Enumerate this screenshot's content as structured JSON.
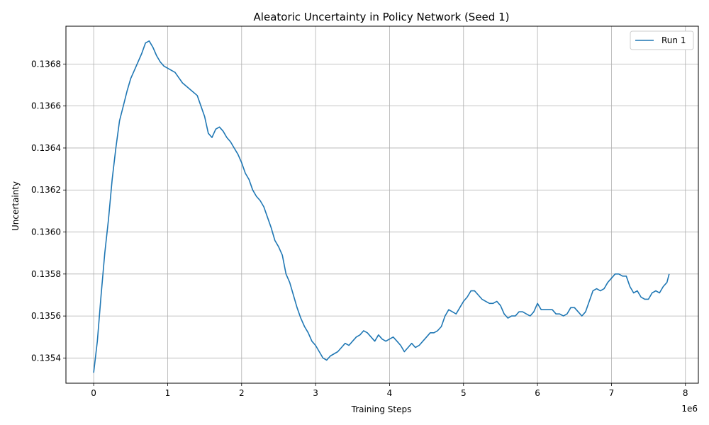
{
  "chart_data": {
    "type": "line",
    "title": "Aleatoric Uncertainty in Policy Network (Seed 1)",
    "xlabel": "Training Steps",
    "ylabel": "Uncertainty",
    "x_offset_label": "1e6",
    "xlim": [
      -375000,
      8175000
    ],
    "ylim": [
      0.13528,
      0.13698
    ],
    "xticks": [
      0,
      1000000,
      2000000,
      3000000,
      4000000,
      5000000,
      6000000,
      7000000,
      8000000
    ],
    "xtick_labels": [
      "0",
      "1",
      "2",
      "3",
      "4",
      "5",
      "6",
      "7",
      "8"
    ],
    "yticks": [
      0.1354,
      0.1356,
      0.1358,
      0.136,
      0.1362,
      0.1364,
      0.1366,
      0.1368
    ],
    "ytick_labels": [
      "0.1354",
      "0.1356",
      "0.1358",
      "0.1360",
      "0.1362",
      "0.1364",
      "0.1366",
      "0.1368"
    ],
    "grid": true,
    "legend_position": "top-right",
    "series": [
      {
        "name": "Run 1",
        "color": "#1f77b4",
        "x": [
          0,
          50000,
          100000,
          150000,
          200000,
          250000,
          300000,
          350000,
          400000,
          450000,
          500000,
          550000,
          600000,
          650000,
          700000,
          750000,
          800000,
          850000,
          900000,
          950000,
          1000000,
          1100000,
          1200000,
          1300000,
          1400000,
          1450000,
          1500000,
          1550000,
          1600000,
          1650000,
          1700000,
          1750000,
          1800000,
          1850000,
          1900000,
          1950000,
          2000000,
          2050000,
          2100000,
          2150000,
          2200000,
          2250000,
          2300000,
          2350000,
          2400000,
          2450000,
          2500000,
          2550000,
          2600000,
          2650000,
          2700000,
          2750000,
          2800000,
          2850000,
          2900000,
          2950000,
          3000000,
          3050000,
          3100000,
          3150000,
          3200000,
          3250000,
          3300000,
          3350000,
          3400000,
          3450000,
          3500000,
          3550000,
          3600000,
          3650000,
          3700000,
          3750000,
          3800000,
          3850000,
          3900000,
          3950000,
          4000000,
          4050000,
          4100000,
          4150000,
          4200000,
          4250000,
          4300000,
          4350000,
          4400000,
          4450000,
          4500000,
          4550000,
          4600000,
          4650000,
          4700000,
          4750000,
          4800000,
          4850000,
          4900000,
          4950000,
          5000000,
          5050000,
          5100000,
          5150000,
          5200000,
          5250000,
          5300000,
          5350000,
          5400000,
          5450000,
          5500000,
          5550000,
          5600000,
          5650000,
          5700000,
          5750000,
          5800000,
          5850000,
          5900000,
          5950000,
          6000000,
          6050000,
          6100000,
          6150000,
          6200000,
          6250000,
          6300000,
          6350000,
          6400000,
          6450000,
          6500000,
          6550000,
          6600000,
          6650000,
          6700000,
          6750000,
          6800000,
          6850000,
          6900000,
          6950000,
          7000000,
          7050000,
          7100000,
          7150000,
          7200000,
          7250000,
          7300000,
          7350000,
          7400000,
          7450000,
          7500000,
          7550000,
          7600000,
          7650000,
          7700000,
          7750000,
          7780000
        ],
        "y": [
          0.13533,
          0.13548,
          0.1357,
          0.1359,
          0.13606,
          0.13625,
          0.1364,
          0.13653,
          0.1366,
          0.13667,
          0.13673,
          0.13677,
          0.13681,
          0.13685,
          0.1369,
          0.13691,
          0.13688,
          0.13684,
          0.13681,
          0.13679,
          0.13678,
          0.13676,
          0.13671,
          0.13668,
          0.13665,
          0.1366,
          0.13655,
          0.13647,
          0.13645,
          0.13649,
          0.1365,
          0.13648,
          0.13645,
          0.13643,
          0.1364,
          0.13637,
          0.13633,
          0.13628,
          0.13625,
          0.1362,
          0.13617,
          0.13615,
          0.13612,
          0.13607,
          0.13602,
          0.13596,
          0.13593,
          0.13589,
          0.1358,
          0.13576,
          0.1357,
          0.13564,
          0.13559,
          0.13555,
          0.13552,
          0.13548,
          0.13546,
          0.13543,
          0.1354,
          0.13539,
          0.13541,
          0.13542,
          0.13543,
          0.13545,
          0.13547,
          0.13546,
          0.13548,
          0.1355,
          0.13551,
          0.13553,
          0.13552,
          0.1355,
          0.13548,
          0.13551,
          0.13549,
          0.13548,
          0.13549,
          0.1355,
          0.13548,
          0.13546,
          0.13543,
          0.13545,
          0.13547,
          0.13545,
          0.13546,
          0.13548,
          0.1355,
          0.13552,
          0.13552,
          0.13553,
          0.13555,
          0.1356,
          0.13563,
          0.13562,
          0.13561,
          0.13564,
          0.13567,
          0.13569,
          0.13572,
          0.13572,
          0.1357,
          0.13568,
          0.13567,
          0.13566,
          0.13566,
          0.13567,
          0.13565,
          0.13561,
          0.13559,
          0.1356,
          0.1356,
          0.13562,
          0.13562,
          0.13561,
          0.1356,
          0.13562,
          0.13566,
          0.13563,
          0.13563,
          0.13563,
          0.13563,
          0.13561,
          0.13561,
          0.1356,
          0.13561,
          0.13564,
          0.13564,
          0.13562,
          0.1356,
          0.13562,
          0.13567,
          0.13572,
          0.13573,
          0.13572,
          0.13573,
          0.13576,
          0.13578,
          0.1358,
          0.1358,
          0.13579,
          0.13579,
          0.13574,
          0.13571,
          0.13572,
          0.13569,
          0.13568,
          0.13568,
          0.13571,
          0.13572,
          0.13571,
          0.13574,
          0.13576,
          0.1358
        ]
      }
    ]
  }
}
